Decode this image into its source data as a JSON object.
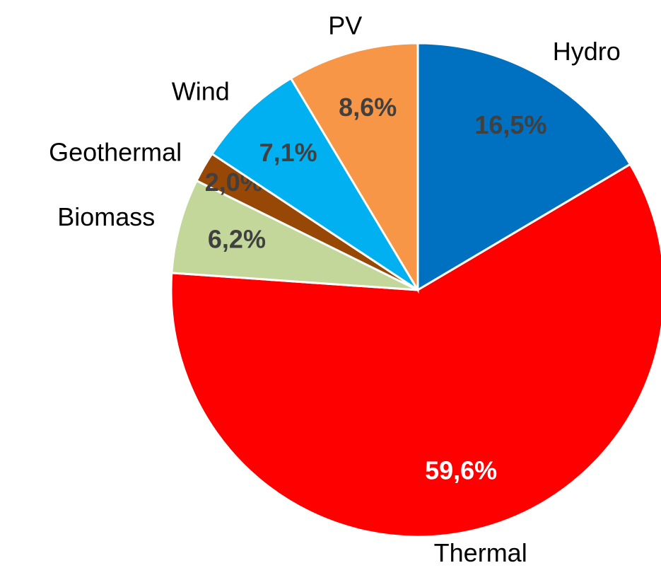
{
  "chart_data": {
    "type": "pie",
    "categories": [
      "Hydro",
      "Thermal",
      "Biomass",
      "Geothermal",
      "Wind",
      "PV"
    ],
    "values": [
      16.5,
      59.6,
      6.2,
      2.0,
      7.1,
      8.6
    ],
    "value_labels": [
      "16,5%",
      "59,6%",
      "6,2%",
      "2,0%",
      "7,1%",
      "8,6%"
    ],
    "colors": [
      "#0070c0",
      "#ff0000",
      "#c4d79b",
      "#974706",
      "#00b0f0",
      "#f79646"
    ],
    "value_label_colors": [
      "#404040",
      "#ffffff",
      "#404040",
      "#404040",
      "#404040",
      "#404040"
    ]
  }
}
